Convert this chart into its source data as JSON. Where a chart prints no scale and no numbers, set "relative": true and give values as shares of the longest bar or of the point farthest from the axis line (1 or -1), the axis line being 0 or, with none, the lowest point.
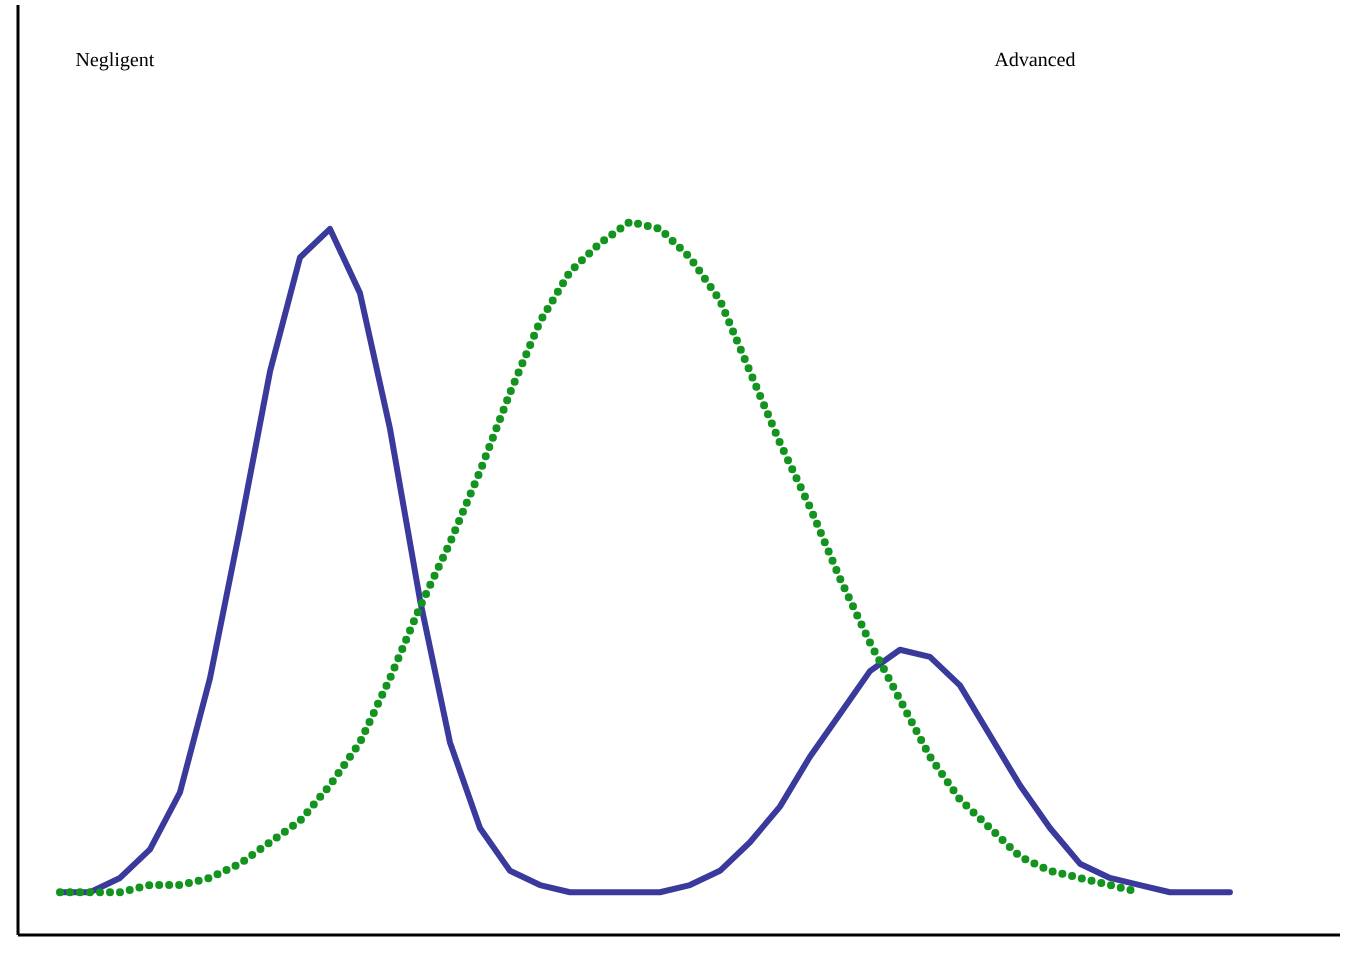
{
  "chart_data": {
    "type": "line",
    "relative": true,
    "marker": "none",
    "annotations": [
      "Negligent",
      "Advanced"
    ],
    "categories": [
      null,
      null,
      null,
      null,
      null,
      null,
      null,
      null,
      null,
      null,
      null,
      null,
      null,
      null,
      null,
      null,
      null,
      null,
      null,
      null,
      null,
      null,
      null,
      null,
      null,
      null,
      null,
      null,
      null,
      null,
      null,
      null,
      null,
      null,
      null,
      null,
      null,
      null,
      null,
      null
    ],
    "series": [
      {
        "color": "#3a3a9c",
        "line_style": "solid",
        "values": [
          0.06,
          0.06,
          0.08,
          0.12,
          0.2,
          0.36,
          0.57,
          0.79,
          0.95,
          0.99,
          0.9,
          0.71,
          0.47,
          0.27,
          0.15,
          0.09,
          0.07,
          0.06,
          0.06,
          0.06,
          0.06,
          0.07,
          0.09,
          0.13,
          0.18,
          0.25,
          0.31,
          0.37,
          0.4,
          0.39,
          0.35,
          0.28,
          0.21,
          0.15,
          0.1,
          0.08,
          0.07,
          0.06,
          0.06,
          0.06
        ]
      },
      {
        "color": "#13941f",
        "line_style": "dotted",
        "values": [
          0.06,
          0.06,
          0.06,
          0.07,
          0.07,
          0.08,
          0.1,
          0.13,
          0.16,
          0.21,
          0.27,
          0.36,
          0.46,
          0.55,
          0.65,
          0.76,
          0.86,
          0.93,
          0.97,
          1.0,
          0.99,
          0.95,
          0.89,
          0.79,
          0.69,
          0.6,
          0.5,
          0.41,
          0.33,
          0.25,
          0.19,
          0.15,
          0.11,
          0.09,
          0.08,
          0.07,
          0.06,
          null,
          null,
          null
        ]
      }
    ]
  }
}
